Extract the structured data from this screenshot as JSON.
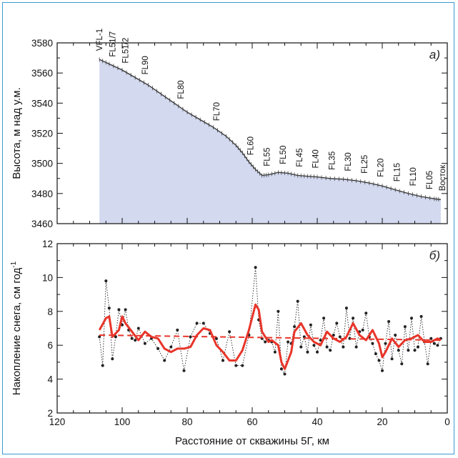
{
  "chart_data": [
    {
      "panel_label": "а)",
      "type": "area",
      "ylabel": "Высота, м над у.м.",
      "xlim": [
        120,
        0
      ],
      "ylim": [
        3460,
        3580
      ],
      "x_ticks": [
        120,
        100,
        80,
        60,
        40,
        20,
        0
      ],
      "y_ticks": [
        3460,
        3480,
        3500,
        3520,
        3540,
        3560,
        3580
      ],
      "fill_color": "#d3d9ef",
      "line_color": "#333333",
      "series": [
        {
          "x": [
            107,
            104,
            100,
            96,
            92,
            88,
            84,
            80,
            76,
            72,
            68,
            65,
            63,
            61,
            59,
            57,
            55,
            52,
            49,
            46,
            43,
            40,
            36,
            32,
            28,
            24,
            20,
            16,
            12,
            8,
            4,
            2
          ],
          "y": [
            3569,
            3566,
            3562,
            3557,
            3552,
            3546,
            3540,
            3534,
            3529,
            3524,
            3518,
            3512,
            3507,
            3501,
            3496,
            3492,
            3492.5,
            3494,
            3493.5,
            3492,
            3491.5,
            3491,
            3490,
            3489.5,
            3488.5,
            3487,
            3485,
            3482.5,
            3480,
            3478,
            3476.5,
            3476
          ]
        }
      ],
      "stations": [
        {
          "label": "VFL-1",
          "x": 107
        },
        {
          "label": "FL51/7",
          "x": 103
        },
        {
          "label": "FL51/2",
          "x": 99
        },
        {
          "label": "FL90",
          "x": 93
        },
        {
          "label": "FL80",
          "x": 82
        },
        {
          "label": "FL70",
          "x": 71
        },
        {
          "label": "FL60",
          "x": 60.5
        },
        {
          "label": "FL55",
          "x": 55.5
        },
        {
          "label": "FL50",
          "x": 50.5
        },
        {
          "label": "FL45",
          "x": 45.5
        },
        {
          "label": "FL40",
          "x": 40.5
        },
        {
          "label": "FL35",
          "x": 35.5
        },
        {
          "label": "FL30",
          "x": 30.5
        },
        {
          "label": "FL25",
          "x": 25.5
        },
        {
          "label": "FL20",
          "x": 20.5
        },
        {
          "label": "FL15",
          "x": 15.5
        },
        {
          "label": "FL10",
          "x": 10.5
        },
        {
          "label": "FL05",
          "x": 5.5
        },
        {
          "label": "Восток",
          "x": 1.5
        }
      ]
    },
    {
      "panel_label": "б)",
      "type": "line",
      "ylabel": "Накопление снега, см год",
      "ylabel_superscript": "-1",
      "xlabel": "Расстояние от скважины 5Г, км",
      "xlim": [
        120,
        0
      ],
      "ylim": [
        2,
        12
      ],
      "x_ticks": [
        120,
        100,
        80,
        60,
        40,
        20,
        0
      ],
      "y_ticks": [
        2,
        4,
        6,
        8,
        10,
        12
      ],
      "series": [
        {
          "name": "raw",
          "style": "dotted-black-with-points",
          "color": "#222222",
          "x": [
            107,
            106,
            105,
            104,
            103,
            102,
            101,
            100,
            99,
            98,
            97,
            96,
            95,
            93,
            91,
            89,
            87,
            85,
            83,
            81,
            79,
            77,
            75,
            73,
            71,
            69,
            67,
            65,
            63,
            61,
            59,
            58,
            57,
            56,
            55,
            54,
            53,
            52,
            51,
            50,
            49,
            48,
            47,
            46,
            45,
            44,
            43,
            42,
            41,
            40,
            39,
            38,
            37,
            36,
            35,
            34,
            33,
            32,
            31,
            30,
            29,
            28,
            27,
            26,
            25,
            24,
            23,
            22,
            21,
            20,
            19,
            18,
            17,
            16,
            15,
            14,
            13,
            12,
            11,
            10,
            9,
            8,
            7,
            6,
            5,
            4,
            3,
            2
          ],
          "y": [
            6.5,
            4.8,
            9.8,
            8.2,
            5.2,
            6.5,
            8.1,
            7.2,
            8.1,
            6.9,
            6.4,
            6.3,
            7.0,
            6.1,
            6.4,
            5.8,
            5.1,
            5.9,
            6.9,
            4.5,
            6.5,
            7.3,
            7.3,
            6.7,
            6.4,
            5.1,
            6.8,
            4.8,
            4.8,
            6.6,
            10.6,
            7.5,
            6.4,
            6.2,
            6.3,
            6.2,
            5.6,
            8.0,
            4.6,
            4.3,
            6.2,
            6.1,
            7.1,
            8.6,
            5.9,
            6.5,
            5.6,
            7.2,
            6.0,
            5.6,
            6.3,
            7.6,
            5.9,
            5.7,
            6.6,
            7.3,
            6.5,
            5.9,
            8.2,
            6.4,
            7.6,
            5.9,
            6.8,
            6.9,
            7.9,
            6.5,
            6.1,
            5.5,
            5.1,
            4.5,
            6.1,
            7.4,
            5.2,
            6.6,
            5.7,
            4.9,
            7.1,
            5.7,
            7.6,
            5.7,
            5.9,
            7.7,
            6.2,
            4.9,
            6.4,
            6.1,
            6.0,
            6.4
          ]
        },
        {
          "name": "smoothed",
          "style": "solid-red-thick",
          "color": "#e8352a",
          "x": [
            107,
            105,
            104,
            103,
            101,
            100,
            99,
            97,
            95,
            93,
            91,
            89,
            87,
            85,
            83,
            81,
            79,
            77,
            75,
            73,
            71,
            69,
            67,
            65,
            63,
            61,
            59,
            58,
            57,
            56,
            55,
            54,
            52,
            51,
            50,
            49,
            48,
            47,
            45,
            43,
            41,
            39,
            37,
            35,
            33,
            31,
            29,
            27,
            25,
            23,
            21,
            20,
            19,
            17,
            15,
            13,
            11,
            9,
            7,
            5,
            3,
            2
          ],
          "y": [
            6.9,
            7.6,
            7.7,
            6.5,
            6.9,
            7.7,
            7.3,
            6.8,
            6.3,
            6.8,
            6.5,
            6.4,
            5.8,
            5.6,
            5.8,
            5.8,
            5.9,
            6.6,
            7.0,
            6.9,
            6.0,
            5.6,
            5.1,
            5.1,
            5.7,
            6.9,
            8.4,
            8.1,
            6.8,
            6.5,
            6.2,
            6.3,
            6.0,
            5.0,
            4.6,
            5.1,
            5.6,
            6.8,
            7.3,
            6.6,
            6.2,
            6.0,
            6.8,
            6.4,
            6.2,
            6.5,
            7.3,
            6.6,
            6.3,
            6.9,
            6.1,
            5.3,
            5.6,
            6.4,
            5.9,
            6.3,
            6.4,
            6.6,
            6.2,
            6.2,
            6.4,
            6.3
          ]
        },
        {
          "name": "trend",
          "style": "dashed-red",
          "color": "#e8352a",
          "x": [
            107,
            2
          ],
          "y": [
            6.6,
            6.3
          ]
        }
      ]
    }
  ]
}
